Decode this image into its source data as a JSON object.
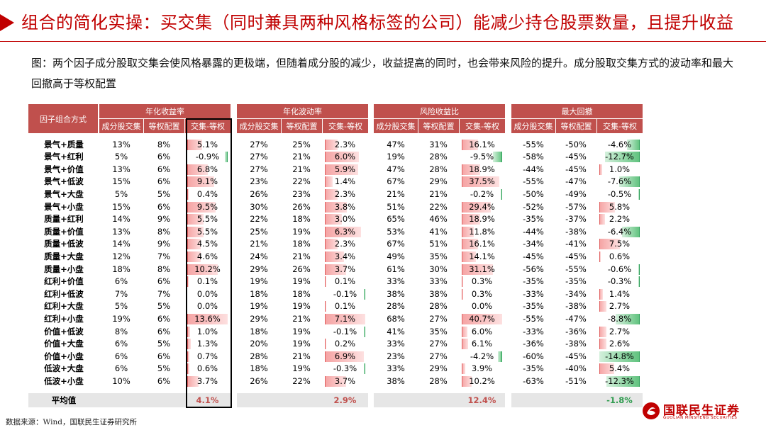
{
  "title": "组合的简化实操：买交集（同时兼具两种风格标签的公司）能减少持仓股票数量，且提升收益",
  "caption": "图：两个因子成分股取交集会使风格暴露的更极端，但随着成分股的减少，收益提高的同时，也会带来风险的提升。成分股取交集方式的波动率和最大回撤高于等权配置",
  "table": {
    "row_header": "因子组合方式",
    "groups": [
      {
        "label": "年化收益率"
      },
      {
        "label": "年化波动率"
      },
      {
        "label": "风险收益比"
      },
      {
        "label": "最大回撤"
      }
    ],
    "subheaders": [
      "成分股交集",
      "等权配置",
      "交集-等权"
    ],
    "rows": [
      {
        "name": "景气+质量",
        "g": [
          [
            "13%",
            "8%",
            "5.1%"
          ],
          [
            "27%",
            "25%",
            "2.3%"
          ],
          [
            "47%",
            "31%",
            "16.1%"
          ],
          [
            "-55%",
            "-50%",
            "-4.6%"
          ]
        ]
      },
      {
        "name": "景气+红利",
        "g": [
          [
            "5%",
            "6%",
            "-0.9%"
          ],
          [
            "27%",
            "21%",
            "6.0%"
          ],
          [
            "19%",
            "28%",
            "-9.5%"
          ],
          [
            "-58%",
            "-45%",
            "-12.7%"
          ]
        ]
      },
      {
        "name": "景气+价值",
        "g": [
          [
            "13%",
            "6%",
            "6.8%"
          ],
          [
            "27%",
            "21%",
            "5.9%"
          ],
          [
            "47%",
            "28%",
            "18.9%"
          ],
          [
            "-44%",
            "-45%",
            "1.0%"
          ]
        ]
      },
      {
        "name": "景气+低波",
        "g": [
          [
            "15%",
            "6%",
            "9.1%"
          ],
          [
            "23%",
            "22%",
            "1.4%"
          ],
          [
            "67%",
            "29%",
            "37.5%"
          ],
          [
            "-55%",
            "-47%",
            "-7.6%"
          ]
        ]
      },
      {
        "name": "景气+大盘",
        "g": [
          [
            "5%",
            "5%",
            "0.4%"
          ],
          [
            "26%",
            "23%",
            "2.3%"
          ],
          [
            "21%",
            "21%",
            "-0.2%"
          ],
          [
            "-50%",
            "-49%",
            "-0.5%"
          ]
        ]
      },
      {
        "name": "景气+小盘",
        "g": [
          [
            "15%",
            "6%",
            "9.5%"
          ],
          [
            "30%",
            "26%",
            "3.8%"
          ],
          [
            "51%",
            "22%",
            "29.4%"
          ],
          [
            "-52%",
            "-57%",
            "5.8%"
          ]
        ]
      },
      {
        "name": "质量+红利",
        "g": [
          [
            "14%",
            "9%",
            "5.5%"
          ],
          [
            "22%",
            "18%",
            "3.0%"
          ],
          [
            "65%",
            "46%",
            "18.9%"
          ],
          [
            "-35%",
            "-37%",
            "2.2%"
          ]
        ]
      },
      {
        "name": "质量+价值",
        "g": [
          [
            "13%",
            "8%",
            "5.5%"
          ],
          [
            "25%",
            "19%",
            "6.3%"
          ],
          [
            "53%",
            "41%",
            "11.8%"
          ],
          [
            "-44%",
            "-38%",
            "-6.4%"
          ]
        ]
      },
      {
        "name": "质量+低波",
        "g": [
          [
            "14%",
            "9%",
            "4.5%"
          ],
          [
            "21%",
            "18%",
            "2.3%"
          ],
          [
            "67%",
            "51%",
            "16.1%"
          ],
          [
            "-34%",
            "-41%",
            "7.5%"
          ]
        ]
      },
      {
        "name": "质量+大盘",
        "g": [
          [
            "12%",
            "7%",
            "4.6%"
          ],
          [
            "24%",
            "21%",
            "3.4%"
          ],
          [
            "49%",
            "35%",
            "14.1%"
          ],
          [
            "-45%",
            "-45%",
            "0.6%"
          ]
        ]
      },
      {
        "name": "质量+小盘",
        "g": [
          [
            "18%",
            "8%",
            "10.2%"
          ],
          [
            "29%",
            "26%",
            "3.7%"
          ],
          [
            "61%",
            "30%",
            "31.1%"
          ],
          [
            "-56%",
            "-55%",
            "-0.6%"
          ]
        ]
      },
      {
        "name": "红利+价值",
        "g": [
          [
            "6%",
            "6%",
            "0.1%"
          ],
          [
            "19%",
            "19%",
            "0.1%"
          ],
          [
            "33%",
            "33%",
            "0.3%"
          ],
          [
            "-35%",
            "-35%",
            "-0.3%"
          ]
        ]
      },
      {
        "name": "红利+低波",
        "g": [
          [
            "7%",
            "7%",
            "0.0%"
          ],
          [
            "18%",
            "18%",
            "-0.1%"
          ],
          [
            "38%",
            "38%",
            "0.3%"
          ],
          [
            "-33%",
            "-34%",
            "1.4%"
          ]
        ]
      },
      {
        "name": "红利+大盘",
        "g": [
          [
            "5%",
            "5%",
            "0.0%"
          ],
          [
            "19%",
            "19%",
            "0.1%"
          ],
          [
            "28%",
            "28%",
            "0.0%"
          ],
          [
            "-35%",
            "-38%",
            "2.7%"
          ]
        ]
      },
      {
        "name": "红利+小盘",
        "g": [
          [
            "19%",
            "6%",
            "13.6%"
          ],
          [
            "29%",
            "21%",
            "7.1%"
          ],
          [
            "68%",
            "27%",
            "40.7%"
          ],
          [
            "-55%",
            "-47%",
            "-8.8%"
          ]
        ]
      },
      {
        "name": "价值+低波",
        "g": [
          [
            "8%",
            "6%",
            "1.0%"
          ],
          [
            "18%",
            "19%",
            "-0.1%"
          ],
          [
            "41%",
            "35%",
            "6.0%"
          ],
          [
            "-33%",
            "-36%",
            "2.7%"
          ]
        ]
      },
      {
        "name": "价值+大盘",
        "g": [
          [
            "6%",
            "5%",
            "1.3%"
          ],
          [
            "20%",
            "19%",
            "0.2%"
          ],
          [
            "33%",
            "27%",
            "6.1%"
          ],
          [
            "-36%",
            "-38%",
            "2.6%"
          ]
        ]
      },
      {
        "name": "价值+小盘",
        "g": [
          [
            "6%",
            "6%",
            "0.7%"
          ],
          [
            "28%",
            "21%",
            "6.9%"
          ],
          [
            "23%",
            "27%",
            "-4.2%"
          ],
          [
            "-60%",
            "-45%",
            "-14.8%"
          ]
        ]
      },
      {
        "name": "低波+大盘",
        "g": [
          [
            "6%",
            "5%",
            "0.6%"
          ],
          [
            "18%",
            "19%",
            "-0.3%"
          ],
          [
            "33%",
            "29%",
            "3.9%"
          ],
          [
            "-35%",
            "-40%",
            "5.4%"
          ]
        ]
      },
      {
        "name": "低波+小盘",
        "g": [
          [
            "10%",
            "6%",
            "3.7%"
          ],
          [
            "26%",
            "22%",
            "3.7%"
          ],
          [
            "38%",
            "28%",
            "10.2%"
          ],
          [
            "-63%",
            "-51%",
            "-12.3%"
          ]
        ]
      }
    ],
    "average": {
      "label": "平均值",
      "values": [
        "4.1%",
        "2.9%",
        "12.4%",
        "-1.8%"
      ]
    }
  },
  "source": "数据来源：Wind，国联民生证券研究所",
  "logo": {
    "cn": "国联民生证券",
    "en": "GUOLIAN MINSHENG SECURITIES"
  },
  "colors": {
    "accent": "#c00000",
    "header": "#c0504d",
    "positive_bar": "#f5a3a3",
    "negative_bar": "#5fc27d"
  }
}
